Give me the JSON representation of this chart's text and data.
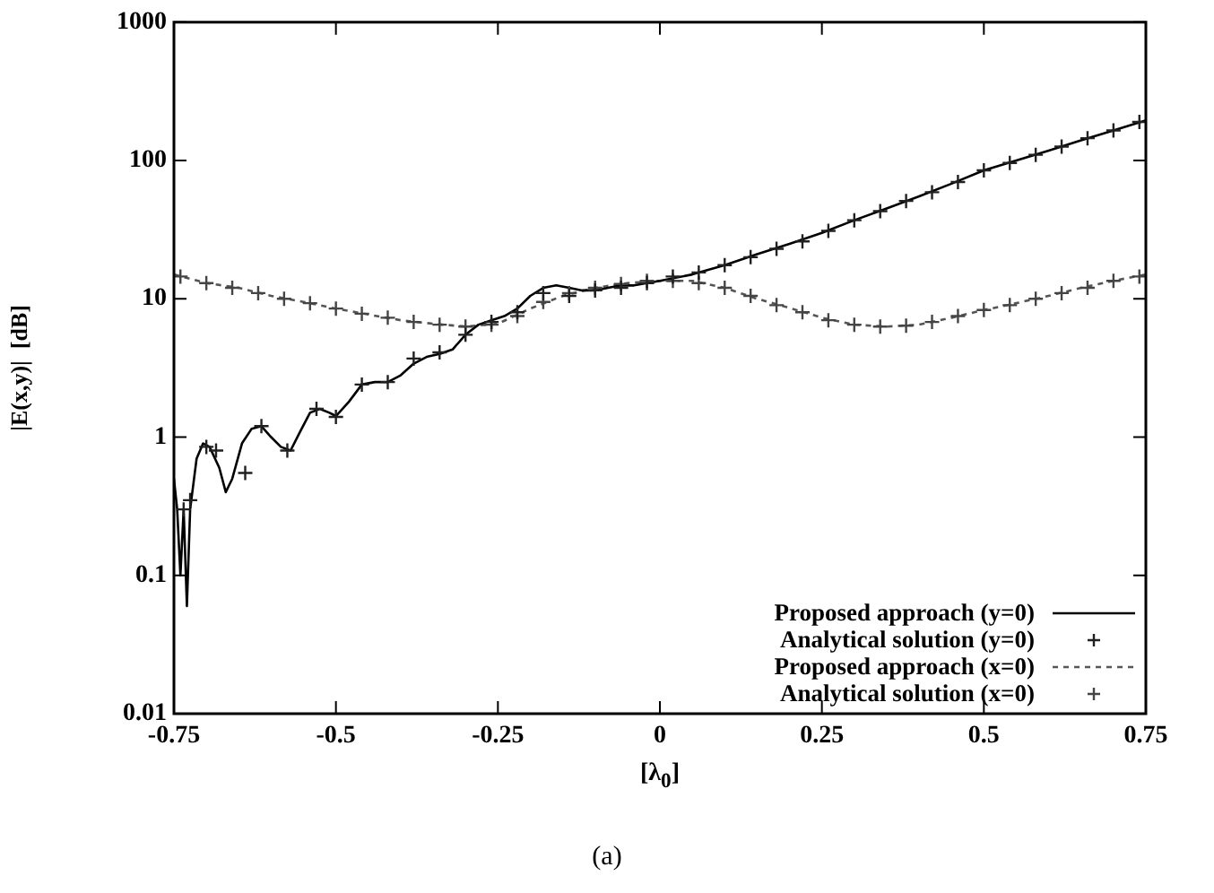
{
  "chart_data": {
    "type": "line",
    "xlabel": "[λ$_{0}$]",
    "ylabel": "|E(x,y)|  [dB]",
    "annotations": [
      "(a)"
    ],
    "xlim": [
      -0.75,
      0.75
    ],
    "xticks": [
      -0.75,
      -0.5,
      -0.25,
      0,
      0.25,
      0.5,
      0.75
    ],
    "ylim": [
      0.01,
      1000
    ],
    "yticks": [
      0.01,
      0.1,
      1,
      10,
      100,
      1000
    ],
    "log": "y",
    "grid": false,
    "legend": "bottom right",
    "series": [
      {
        "name": "Proposed approach (y=0)",
        "type": "line",
        "color": "#000000",
        "line_style": "solid",
        "marker": "none",
        "x": [
          -0.75,
          -0.745,
          -0.74,
          -0.735,
          -0.73,
          -0.725,
          -0.715,
          -0.705,
          -0.695,
          -0.68,
          -0.67,
          -0.66,
          -0.645,
          -0.63,
          -0.615,
          -0.6,
          -0.585,
          -0.57,
          -0.555,
          -0.54,
          -0.525,
          -0.51,
          -0.5,
          -0.48,
          -0.46,
          -0.44,
          -0.42,
          -0.4,
          -0.38,
          -0.36,
          -0.34,
          -0.32,
          -0.3,
          -0.28,
          -0.26,
          -0.24,
          -0.22,
          -0.2,
          -0.18,
          -0.16,
          -0.14,
          -0.12,
          -0.1,
          -0.08,
          -0.06,
          -0.04,
          -0.02,
          0,
          0.05,
          0.1,
          0.15,
          0.2,
          0.25,
          0.3,
          0.35,
          0.4,
          0.45,
          0.5,
          0.55,
          0.6,
          0.65,
          0.7,
          0.75
        ],
        "values": [
          0.5,
          0.3,
          0.1,
          0.3,
          0.06,
          0.3,
          0.7,
          0.9,
          0.85,
          0.6,
          0.4,
          0.5,
          0.9,
          1.15,
          1.2,
          1.0,
          0.85,
          0.8,
          1.1,
          1.5,
          1.6,
          1.5,
          1.42,
          1.8,
          2.4,
          2.5,
          2.5,
          2.8,
          3.4,
          3.8,
          4.0,
          4.3,
          5.5,
          6.5,
          7.0,
          7.5,
          8.5,
          10.5,
          12,
          12.5,
          12,
          11.5,
          11.5,
          12,
          12.5,
          12.5,
          13,
          13.5,
          15,
          17.5,
          21,
          25,
          30,
          37,
          45,
          55,
          68,
          85,
          100,
          118,
          140,
          165,
          195
        ]
      },
      {
        "name": "Analytical solution (y=0)",
        "type": "scatter",
        "color": "#202020",
        "marker": "cross",
        "x": [
          -0.735,
          -0.725,
          -0.7,
          -0.685,
          -0.64,
          -0.615,
          -0.575,
          -0.53,
          -0.5,
          -0.46,
          -0.42,
          -0.38,
          -0.34,
          -0.3,
          -0.26,
          -0.22,
          -0.18,
          -0.14,
          -0.1,
          -0.06,
          -0.02,
          0.02,
          0.06,
          0.1,
          0.14,
          0.18,
          0.22,
          0.26,
          0.3,
          0.34,
          0.38,
          0.42,
          0.46,
          0.5,
          0.54,
          0.58,
          0.62,
          0.66,
          0.7,
          0.74
        ],
        "values": [
          0.3,
          0.35,
          0.85,
          0.8,
          0.55,
          1.2,
          0.8,
          1.6,
          1.4,
          2.4,
          2.5,
          3.7,
          4.1,
          5.5,
          6.8,
          8,
          11,
          10.5,
          11.5,
          12,
          13,
          14.5,
          15.5,
          17.5,
          20,
          23,
          26,
          31,
          37,
          43,
          51,
          59,
          70,
          85,
          96,
          110,
          126,
          145,
          165,
          190
        ]
      },
      {
        "name": "Proposed approach (x=0)",
        "type": "line",
        "color": "#555555",
        "line_style": "dashed",
        "marker": "none",
        "x": [
          -0.75,
          -0.7,
          -0.65,
          -0.6,
          -0.55,
          -0.5,
          -0.45,
          -0.4,
          -0.35,
          -0.3,
          -0.25,
          -0.2,
          -0.15,
          -0.1,
          -0.05,
          0,
          0.05,
          0.1,
          0.15,
          0.2,
          0.25,
          0.3,
          0.35,
          0.4,
          0.45,
          0.5,
          0.55,
          0.6,
          0.65,
          0.7,
          0.75
        ],
        "values": [
          15,
          13,
          12,
          10.5,
          9.5,
          8.5,
          7.7,
          7,
          6.6,
          6.3,
          6.6,
          8.5,
          10.5,
          12,
          13,
          13.5,
          13.5,
          12,
          10,
          8.6,
          7.3,
          6.5,
          6.3,
          6.5,
          7.3,
          8.3,
          9.3,
          10.5,
          12,
          13.5,
          15
        ]
      },
      {
        "name": "Analytical solution (x=0)",
        "type": "scatter",
        "color": "#444444",
        "marker": "cross",
        "x": [
          -0.74,
          -0.7,
          -0.66,
          -0.62,
          -0.58,
          -0.54,
          -0.5,
          -0.46,
          -0.42,
          -0.38,
          -0.34,
          -0.3,
          -0.26,
          -0.22,
          -0.18,
          -0.14,
          -0.1,
          -0.06,
          -0.02,
          0.02,
          0.06,
          0.1,
          0.14,
          0.18,
          0.22,
          0.26,
          0.3,
          0.34,
          0.38,
          0.42,
          0.46,
          0.5,
          0.54,
          0.58,
          0.62,
          0.66,
          0.7,
          0.74
        ],
        "values": [
          14.5,
          13,
          12,
          11,
          10,
          9.3,
          8.5,
          7.8,
          7.3,
          6.8,
          6.5,
          6.3,
          6.5,
          7.5,
          9.5,
          11,
          12,
          12.8,
          13.5,
          13.5,
          13,
          12,
          10.5,
          9,
          8,
          7,
          6.5,
          6.3,
          6.4,
          6.8,
          7.5,
          8.3,
          9,
          10,
          11,
          12,
          13.5,
          14.5
        ]
      }
    ]
  }
}
